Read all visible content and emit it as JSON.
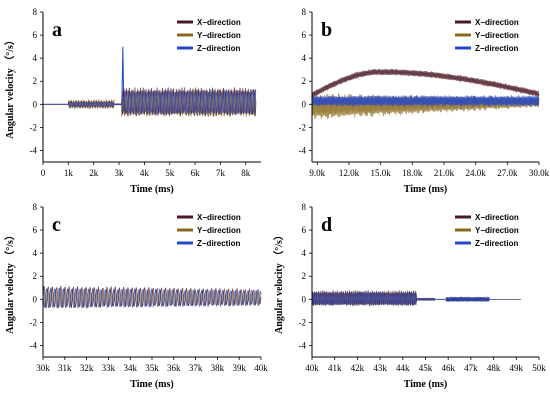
{
  "chart_data": [
    {
      "type": "line",
      "panel": "a",
      "xlabel": "Time (ms)",
      "ylabel": "Angular velocity （°/s）",
      "xlim": [
        0,
        8600
      ],
      "ylim": [
        -5,
        8
      ],
      "x_ticks": [
        0,
        1000,
        2000,
        3000,
        4000,
        5000,
        6000,
        7000,
        8000
      ],
      "x_tick_labels": [
        "0",
        "1k",
        "2k",
        "3k",
        "4k",
        "5k",
        "6k",
        "7k",
        "8k"
      ],
      "y_ticks": [
        -4,
        -2,
        0,
        2,
        4,
        6,
        8
      ],
      "y_tick_labels": [
        "-4",
        "-2",
        "0",
        "2",
        "4",
        "6",
        "8"
      ],
      "series": [
        {
          "name": "X−direction",
          "color": "#4a1a24"
        },
        {
          "name": "Y−direction",
          "color": "#8b6a1e"
        },
        {
          "name": "Z−direction",
          "color": "#2748c8"
        }
      ],
      "legend": "top-right",
      "segments": [
        {
          "t0": 0,
          "t1": 1000,
          "amp": [
            0.02,
            0.02,
            0.02
          ],
          "center": [
            0,
            0,
            0
          ],
          "period": 200
        },
        {
          "t0": 1000,
          "t1": 2800,
          "amp": [
            0.3,
            0.4,
            0.2
          ],
          "center": [
            0,
            0,
            0
          ],
          "period": 220
        },
        {
          "t0": 2800,
          "t1": 3100,
          "amp": [
            0.05,
            0.05,
            0.05
          ],
          "center": [
            0,
            0,
            0
          ],
          "period": 200
        },
        {
          "t0": 3100,
          "t1": 8400,
          "amp": [
            1.3,
            1.2,
            1.1
          ],
          "center": [
            0.2,
            0.1,
            0.2
          ],
          "period": 240
        }
      ],
      "spike": {
        "t": 3150,
        "value": 5.0
      }
    },
    {
      "type": "line",
      "panel": "b",
      "xlabel": "Time (ms)",
      "ylabel": "",
      "xlim": [
        8500,
        30000
      ],
      "ylim": [
        -5,
        8
      ],
      "x_ticks": [
        9000,
        12000,
        15000,
        18000,
        21000,
        24000,
        27000,
        30000
      ],
      "x_tick_labels": [
        "9.0k",
        "12.0k",
        "15.0k",
        "18.0k",
        "21.0k",
        "24.0k",
        "27.0k",
        "30.0k"
      ],
      "y_ticks": [
        -4,
        -2,
        0,
        2,
        4,
        6,
        8
      ],
      "y_tick_labels": [
        "-4",
        "-2",
        "0",
        "2",
        "4",
        "6",
        "8"
      ],
      "series": [
        {
          "name": "X−direction",
          "color": "#4a1a24"
        },
        {
          "name": "Y−direction",
          "color": "#8b6a1e"
        },
        {
          "name": "Z−direction",
          "color": "#2748c8"
        }
      ],
      "legend": "top-right",
      "trend_x": {
        "start": 0.8,
        "peak": 2.8,
        "peak_t": 15000,
        "end": 0.9
      },
      "amp": [
        0.3,
        1.2,
        0.5
      ],
      "period": 300
    },
    {
      "type": "line",
      "panel": "c",
      "xlabel": "Time (ms)",
      "ylabel": "Angular velocity （°/s）",
      "xlim": [
        30000,
        40000
      ],
      "ylim": [
        -5,
        8
      ],
      "x_ticks": [
        30000,
        31000,
        32000,
        33000,
        34000,
        35000,
        36000,
        37000,
        38000,
        39000,
        40000
      ],
      "x_tick_labels": [
        "30k",
        "31k",
        "32k",
        "33k",
        "34k",
        "35k",
        "36k",
        "37k",
        "38k",
        "39k",
        "40k"
      ],
      "y_ticks": [
        -4,
        -2,
        0,
        2,
        4,
        6,
        8
      ],
      "y_tick_labels": [
        "-4",
        "-2",
        "0",
        "2",
        "4",
        "6",
        "8"
      ],
      "series": [
        {
          "name": "X−direction",
          "color": "#4a1a24"
        },
        {
          "name": "Y−direction",
          "color": "#8b6a1e"
        },
        {
          "name": "Z−direction",
          "color": "#2748c8"
        }
      ],
      "legend": "top-right",
      "amp_start": [
        1.0,
        0.9,
        0.9
      ],
      "amp_end": [
        0.7,
        0.6,
        0.7
      ],
      "center": [
        0.2,
        0.1,
        0.1
      ],
      "period": 250
    },
    {
      "type": "line",
      "panel": "d",
      "xlabel": "Time (ms)",
      "ylabel": "Angular velocity （°/s）",
      "xlim": [
        40000,
        50000
      ],
      "ylim": [
        -5,
        8
      ],
      "x_ticks": [
        40000,
        41000,
        42000,
        43000,
        44000,
        45000,
        46000,
        47000,
        48000,
        49000,
        50000
      ],
      "x_tick_labels": [
        "40k",
        "41k",
        "42k",
        "43k",
        "44k",
        "45k",
        "46k",
        "47k",
        "48k",
        "49k",
        "50k"
      ],
      "y_ticks": [
        -4,
        -2,
        0,
        2,
        4,
        6,
        8
      ],
      "y_tick_labels": [
        "-4",
        "-2",
        "0",
        "2",
        "4",
        "6",
        "8"
      ],
      "series": [
        {
          "name": "X−direction",
          "color": "#4a1a24"
        },
        {
          "name": "Y−direction",
          "color": "#8b6a1e"
        },
        {
          "name": "Z−direction",
          "color": "#2748c8"
        }
      ],
      "legend": "top-right",
      "segments": [
        {
          "t0": 40000,
          "t1": 44600,
          "amp": [
            0.7,
            0.6,
            0.6
          ],
          "center": [
            0.1,
            0.05,
            0.05
          ],
          "period": 200
        },
        {
          "t0": 44600,
          "t1": 45400,
          "amp": [
            0.1,
            0.1,
            0.1
          ],
          "center": [
            0,
            0,
            0
          ],
          "period": 200
        },
        {
          "t0": 45400,
          "t1": 45900,
          "amp": [
            0.01,
            0.01,
            0.01
          ],
          "center": [
            0,
            0,
            0
          ],
          "period": 200
        },
        {
          "t0": 45900,
          "t1": 47800,
          "amp": [
            0.2,
            0.15,
            0.2
          ],
          "center": [
            0,
            0,
            0
          ],
          "period": 120
        },
        {
          "t0": 47800,
          "t1": 49200,
          "amp": [
            0.0,
            0.0,
            0.0
          ],
          "center": [
            0,
            0,
            0
          ],
          "period": 200
        }
      ]
    }
  ]
}
